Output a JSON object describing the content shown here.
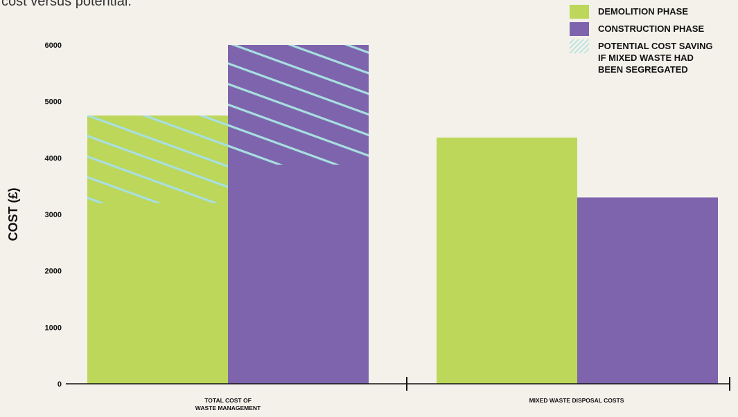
{
  "caption": "cost versus potential.",
  "colors": {
    "demolition": "#bcd759",
    "construction": "#7d64ad",
    "hatch": "#a8dfe0",
    "axis": "#111111"
  },
  "chart_data": {
    "type": "bar",
    "ylabel": "COST (£)",
    "ylim": [
      0,
      6000
    ],
    "yticks": [
      "0",
      "1000",
      "2000",
      "3000",
      "4000",
      "5000",
      "6000"
    ],
    "categories": [
      {
        "lines": [
          "TOTAL COST OF",
          "WASTE MANAGEMENT"
        ]
      },
      {
        "lines": [
          "MIXED WASTE DISPOSAL COSTS"
        ]
      }
    ],
    "series": [
      {
        "name": "DEMOLITION PHASE",
        "values": [
          3200,
          4360
        ],
        "potential_total": [
          4750,
          null
        ]
      },
      {
        "name": "CONSTRUCTION PHASE",
        "values": [
          3880,
          3300
        ],
        "potential_total": [
          6000,
          null
        ]
      }
    ],
    "legend": {
      "position": "top-right",
      "items": [
        {
          "key": "demolition",
          "lines": [
            "DEMOLITION PHASE"
          ]
        },
        {
          "key": "construction",
          "lines": [
            "CONSTRUCTION PHASE"
          ]
        },
        {
          "key": "hatch",
          "lines": [
            "POTENTIAL COST SAVING",
            "IF MIXED WASTE HAD",
            "BEEN SEGREGATED"
          ]
        }
      ]
    },
    "grid": false
  }
}
